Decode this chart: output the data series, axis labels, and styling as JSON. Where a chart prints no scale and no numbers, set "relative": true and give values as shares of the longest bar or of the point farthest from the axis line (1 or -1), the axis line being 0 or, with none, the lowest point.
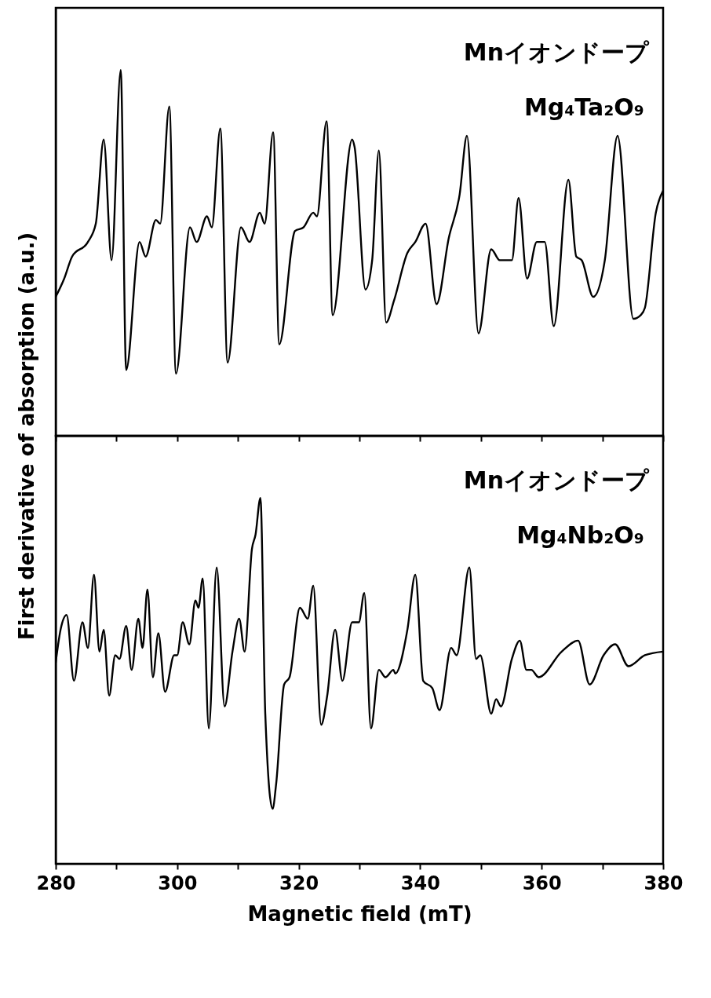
{
  "chart_data": [
    {
      "type": "line",
      "relative": true,
      "ylabel": "First derivative of absorption (a.u.)",
      "annotations": [
        "Mnイオンドープ",
        "Mg₄Ta₂O₉"
      ],
      "xlim": [
        280,
        380
      ],
      "xticks": [
        280,
        {
          "value": 290,
          "label": null
        },
        300,
        {
          "value": 310,
          "label": null
        },
        320,
        {
          "value": 330,
          "label": null
        },
        340,
        {
          "value": 350,
          "label": null
        },
        360,
        {
          "value": 370,
          "label": null
        },
        380
      ],
      "tick_labels": false,
      "series": [
        {
          "color": "#000000",
          "x": [
            280,
            281.4,
            282.7,
            285.3,
            286.6,
            287.9,
            289.2,
            290.7,
            291.6,
            293.8,
            294.8,
            296.5,
            297.2,
            298.7,
            299.8,
            302.1,
            303.2,
            304.9,
            305.7,
            307.1,
            308.3,
            310.5,
            311.9,
            313.6,
            314.4,
            315.8,
            316.8,
            319.4,
            320.8,
            322.4,
            323.0,
            324.6,
            325.6,
            328.8,
            329.2,
            331.0,
            332.1,
            333.2,
            334.4,
            335.7,
            337.9,
            339.2,
            340.9,
            342.7,
            344.7,
            346.5,
            347.7,
            349.6,
            351.7,
            353.1,
            355.1,
            356.2,
            357.6,
            359.2,
            360.5,
            362.0,
            364.4,
            365.7,
            366.6,
            368.5,
            370.4,
            372.5,
            375.1,
            376.3,
            377.0,
            378.8,
            380
          ],
          "values": [
            0.38,
            0.43,
            0.49,
            0.53,
            0.58,
            0.81,
            0.48,
            1.0,
            0.18,
            0.53,
            0.49,
            0.59,
            0.58,
            0.9,
            0.17,
            0.57,
            0.53,
            0.6,
            0.57,
            0.84,
            0.2,
            0.57,
            0.53,
            0.61,
            0.58,
            0.83,
            0.25,
            0.56,
            0.57,
            0.61,
            0.6,
            0.86,
            0.33,
            0.81,
            0.79,
            0.4,
            0.48,
            0.78,
            0.31,
            0.37,
            0.5,
            0.53,
            0.58,
            0.36,
            0.54,
            0.66,
            0.82,
            0.28,
            0.51,
            0.48,
            0.48,
            0.65,
            0.43,
            0.53,
            0.53,
            0.3,
            0.7,
            0.49,
            0.48,
            0.38,
            0.48,
            0.82,
            0.32,
            0.33,
            0.35,
            0.61,
            0.67
          ]
        }
      ]
    },
    {
      "type": "line",
      "relative": true,
      "xlabel": "Magnetic field (mT)",
      "annotations": [
        "Mnイオンドープ",
        "Mg₄Nb₂O₉"
      ],
      "xlim": [
        280,
        380
      ],
      "xticks": [
        280,
        {
          "value": 290,
          "label": null
        },
        300,
        {
          "value": 310,
          "label": null
        },
        320,
        {
          "value": 330,
          "label": null
        },
        340,
        {
          "value": 350,
          "label": null
        },
        360,
        {
          "value": 370,
          "label": null
        },
        380
      ],
      "tick_labels": "x",
      "series": [
        {
          "color": "#000000",
          "x": [
            280.0,
            280.8,
            281.8,
            283.0,
            284.4,
            285.3,
            286.3,
            287.2,
            287.9,
            288.8,
            289.8,
            290.5,
            291.6,
            292.5,
            293.6,
            294.3,
            295.1,
            296.0,
            296.9,
            298.0,
            299.5,
            300.0,
            300.9,
            302.0,
            303.0,
            303.5,
            304.2,
            305.2,
            306.5,
            307.8,
            309.1,
            310.2,
            311.1,
            312.3,
            312.9,
            313.7,
            314.5,
            315.7,
            316.3,
            317.6,
            318.5,
            320.2,
            321.5,
            322.4,
            323.7,
            324.7,
            326.0,
            327.2,
            328.8,
            329.9,
            330.8,
            331.9,
            333.2,
            334.3,
            335.6,
            335.9,
            337.9,
            339.2,
            340.5,
            342.0,
            343.2,
            345.1,
            346.0,
            348.1,
            349.2,
            349.9,
            351.7,
            352.5,
            353.3,
            355.1,
            356.4,
            357.5,
            358.3,
            359.5,
            363.3,
            366.0,
            367.9,
            370.2,
            372.1,
            374.3,
            377.0,
            380
          ],
          "values": [
            0.55,
            0.64,
            0.68,
            0.5,
            0.66,
            0.59,
            0.79,
            0.58,
            0.64,
            0.46,
            0.57,
            0.56,
            0.65,
            0.53,
            0.67,
            0.59,
            0.75,
            0.51,
            0.63,
            0.47,
            0.57,
            0.57,
            0.66,
            0.6,
            0.72,
            0.7,
            0.78,
            0.37,
            0.81,
            0.43,
            0.58,
            0.67,
            0.58,
            0.86,
            0.9,
            1.0,
            0.41,
            0.15,
            0.22,
            0.49,
            0.51,
            0.7,
            0.67,
            0.76,
            0.38,
            0.46,
            0.64,
            0.5,
            0.66,
            0.66,
            0.74,
            0.37,
            0.53,
            0.51,
            0.53,
            0.52,
            0.64,
            0.79,
            0.5,
            0.48,
            0.42,
            0.59,
            0.57,
            0.81,
            0.56,
            0.57,
            0.41,
            0.45,
            0.43,
            0.56,
            0.61,
            0.53,
            0.53,
            0.51,
            0.58,
            0.61,
            0.49,
            0.57,
            0.6,
            0.54,
            0.57,
            0.58
          ]
        }
      ]
    }
  ]
}
